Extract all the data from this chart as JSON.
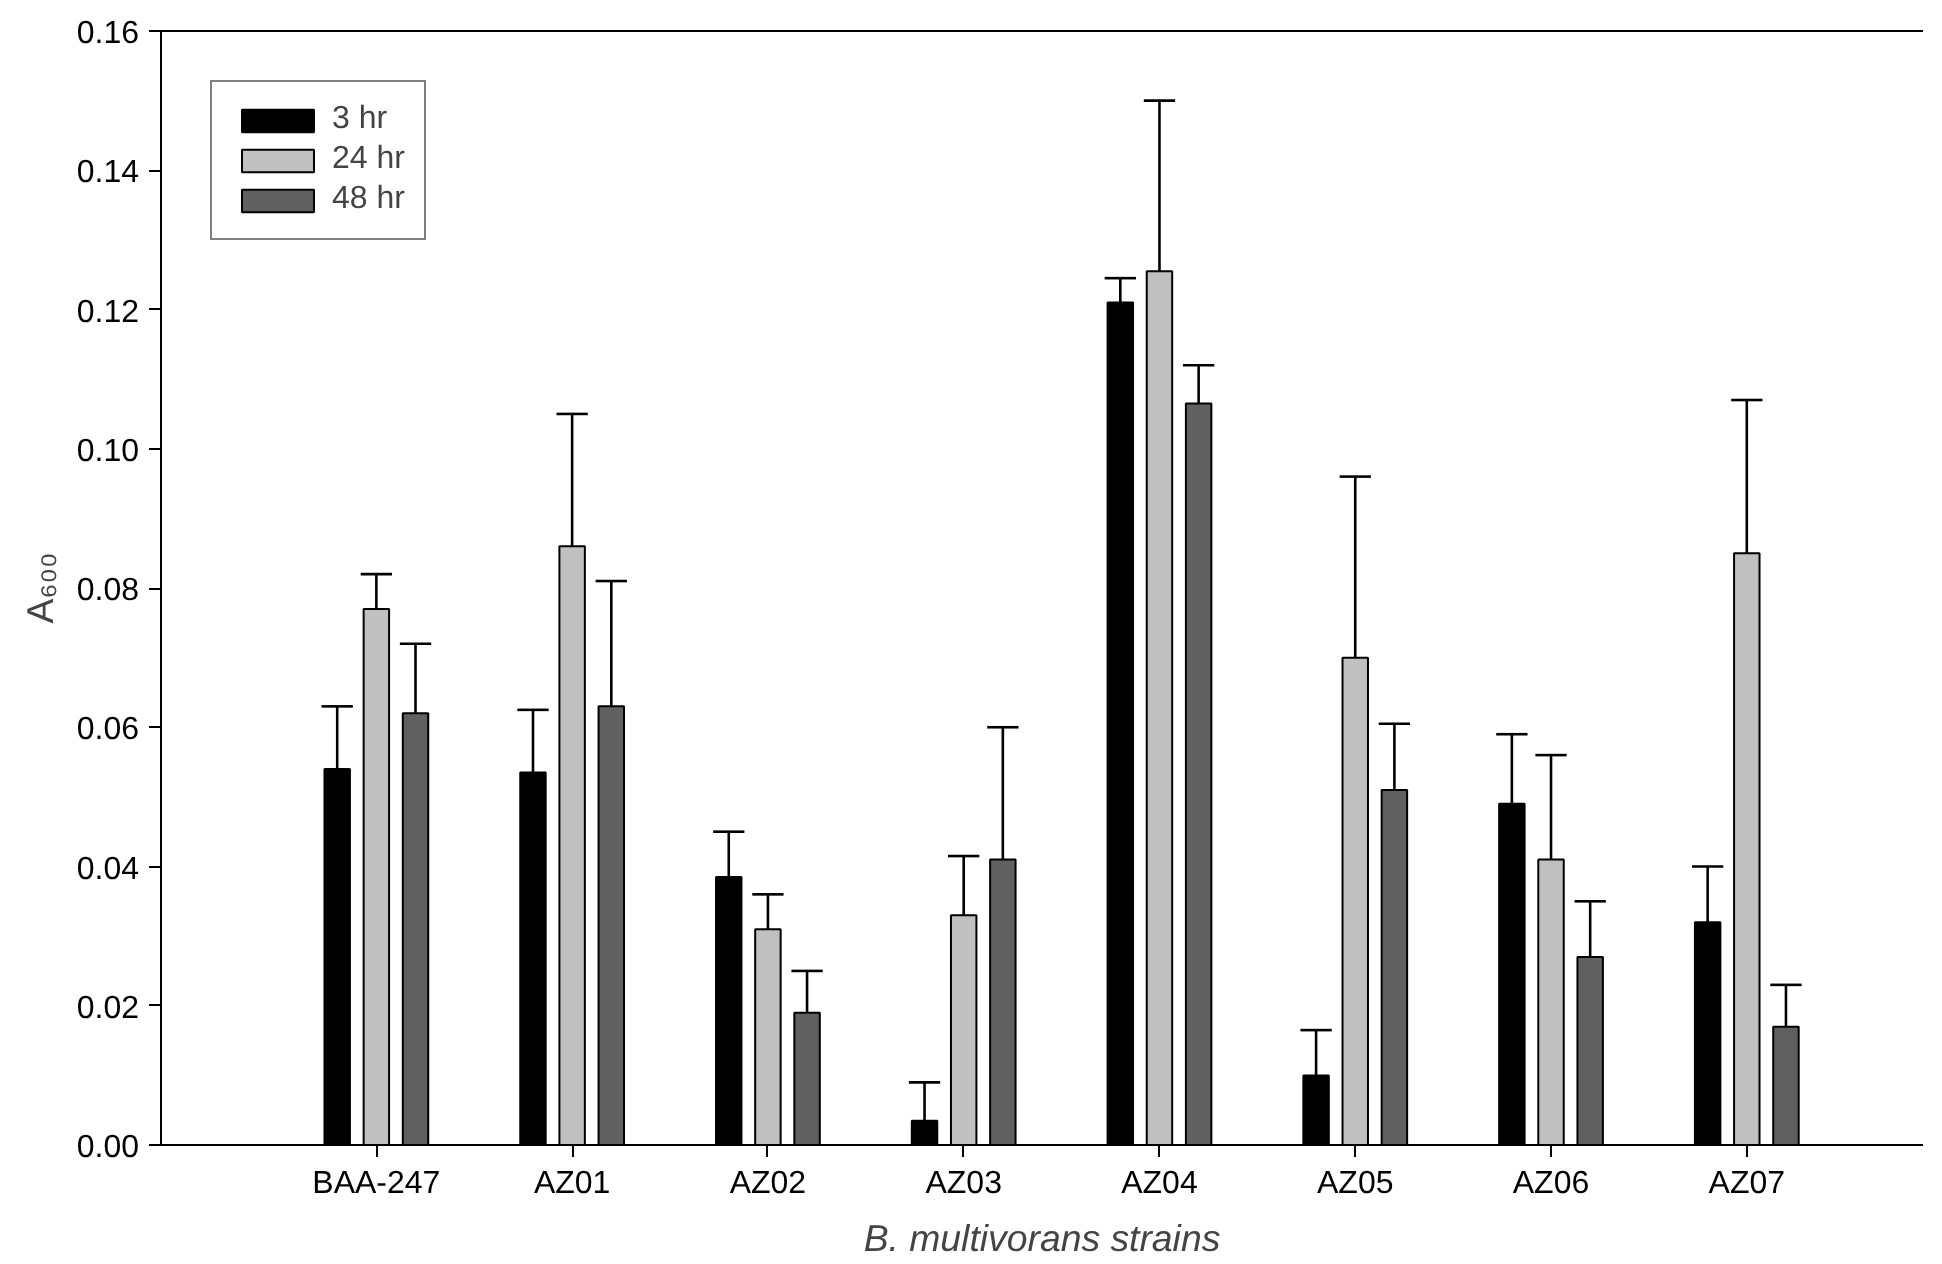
{
  "chart_data": {
    "type": "bar",
    "xlabel": "B. multivorans strains",
    "ylabel": "A₆₀₀",
    "categories": [
      "BAA-247",
      "AZ01",
      "AZ02",
      "AZ03",
      "AZ04",
      "AZ05",
      "AZ06",
      "AZ07"
    ],
    "series": [
      {
        "name": "3 hr",
        "color": "#000000",
        "values": [
          0.054,
          0.0535,
          0.0385,
          0.0035,
          0.121,
          0.01,
          0.049,
          0.032
        ],
        "errors": [
          [
            0.054,
            0.063
          ],
          [
            0.0535,
            0.0625
          ],
          [
            0.0385,
            0.045
          ],
          [
            0.0035,
            0.009
          ],
          [
            0.121,
            0.1245
          ],
          [
            0.01,
            0.0165
          ],
          [
            0.049,
            0.059
          ],
          [
            0.032,
            0.04
          ]
        ]
      },
      {
        "name": "24 hr",
        "color": "#c0c0c0",
        "values": [
          0.077,
          0.086,
          0.031,
          0.033,
          0.1255,
          0.07,
          0.041,
          0.085
        ],
        "errors": [
          [
            0.077,
            0.082
          ],
          [
            0.086,
            0.105
          ],
          [
            0.031,
            0.036
          ],
          [
            0.033,
            0.0415
          ],
          [
            0.1255,
            0.15
          ],
          [
            0.07,
            0.096
          ],
          [
            0.041,
            0.056
          ],
          [
            0.085,
            0.107
          ]
        ]
      },
      {
        "name": "48 hr",
        "color": "#606060",
        "values": [
          0.062,
          0.063,
          0.019,
          0.041,
          0.1065,
          0.051,
          0.027,
          0.017
        ],
        "errors": [
          [
            0.062,
            0.072
          ],
          [
            0.063,
            0.081
          ],
          [
            0.019,
            0.025
          ],
          [
            0.041,
            0.06
          ],
          [
            0.1065,
            0.112
          ],
          [
            0.051,
            0.0605
          ],
          [
            0.027,
            0.035
          ],
          [
            0.017,
            0.023
          ]
        ]
      }
    ],
    "ylim": [
      0,
      0.16
    ],
    "yticks": [
      {
        "value": 0,
        "label": "0.00"
      },
      {
        "value": 0.02,
        "label": "0.02"
      },
      {
        "value": 0.04,
        "label": "0.04"
      },
      {
        "value": 0.06,
        "label": "0.06"
      },
      {
        "value": 0.08,
        "label": "0.08"
      },
      {
        "value": 0.1,
        "label": "0.10"
      },
      {
        "value": 0.12,
        "label": "0.12"
      },
      {
        "value": 0.14,
        "label": "0.14"
      },
      {
        "value": 0.16,
        "label": "0.16"
      }
    ],
    "grid": false,
    "legend": "top left"
  }
}
